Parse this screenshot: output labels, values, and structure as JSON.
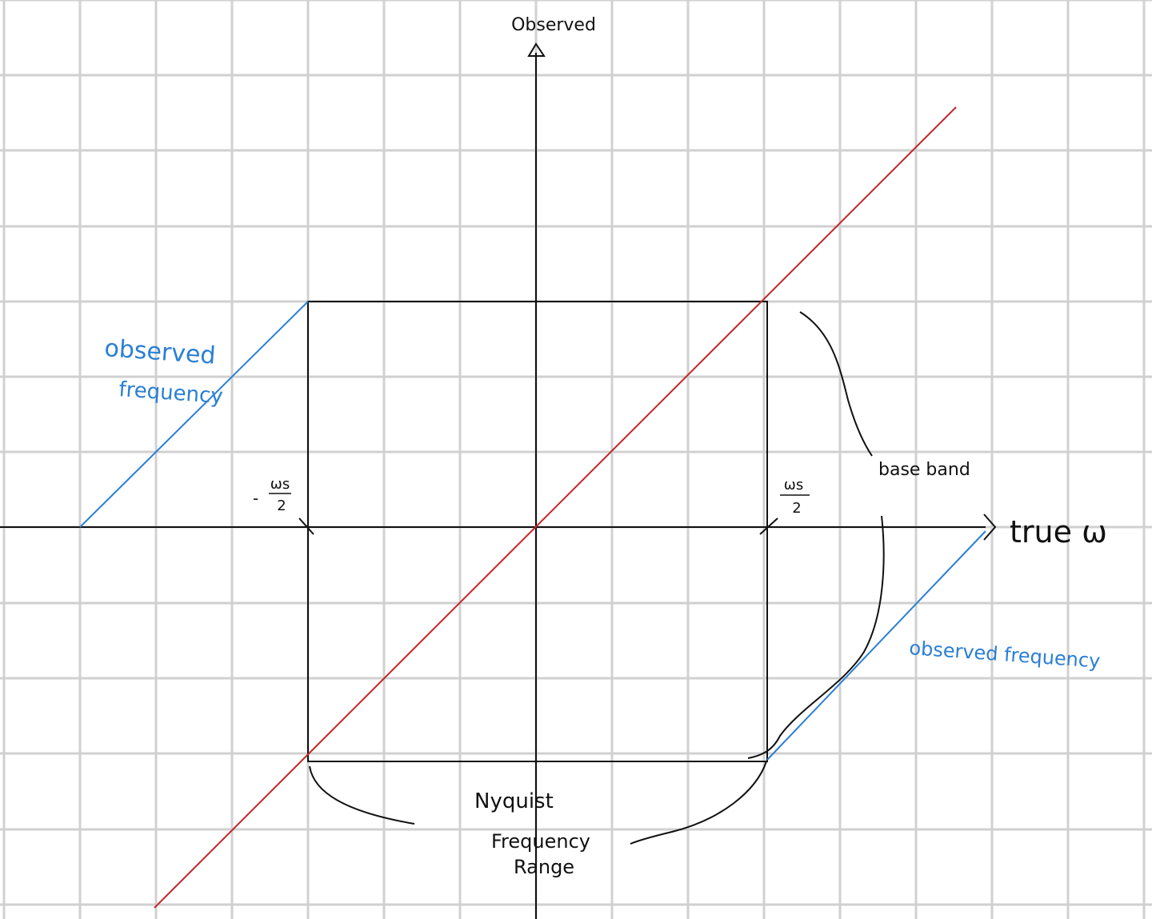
{
  "diagram": {
    "y_axis_label": "Observed",
    "x_axis_label": "true ω",
    "neg_half_sample": {
      "sign": "-",
      "numerator": "ωs",
      "denominator": "2"
    },
    "pos_half_sample": {
      "numerator": "ωs",
      "denominator": "2"
    },
    "observed_left_line1": "observed",
    "observed_left_line2": "frequency",
    "observed_right": "observed frequency",
    "base_band": "base band",
    "nyquist_line1": "Nyquist",
    "nyquist_line2": "Frequency",
    "nyquist_line3": "Range"
  },
  "colors": {
    "grid": "#d0d0d0",
    "ink": "#111111",
    "identity_line": "#c0282d",
    "observed": "#2a7fd4"
  }
}
